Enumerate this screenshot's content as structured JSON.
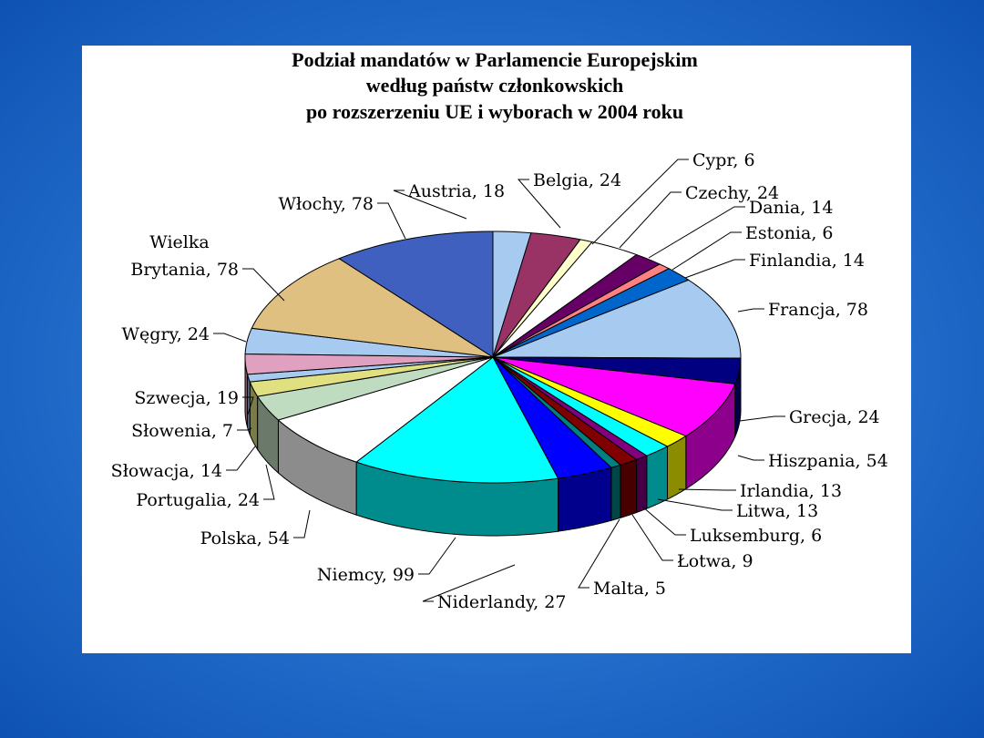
{
  "chart_data": {
    "type": "pie",
    "style": "3d-exploded-none",
    "title": [
      "Podział mandatów w Parlamencie Europejskim",
      "według państw członkowskich",
      "po rozszerzeniu UE i wyborach w 2004 roku"
    ],
    "label_format": "{category}, {value}",
    "start": "top, clockwise",
    "categories": [
      "Austria",
      "Belgia",
      "Cypr",
      "Czechy",
      "Dania",
      "Estonia",
      "Finlandia",
      "Francja",
      "Grecja",
      "Hiszpania",
      "Irlandia",
      "Litwa",
      "Luksemburg",
      "Łotwa",
      "Malta",
      "Niderlandy",
      "Niemcy",
      "Polska",
      "Portugalia",
      "Słowacja",
      "Słowenia",
      "Szwecja",
      "Węgry",
      "Wielka Brytania",
      "Włochy"
    ],
    "values": [
      18,
      24,
      6,
      24,
      14,
      6,
      14,
      78,
      24,
      54,
      13,
      13,
      6,
      9,
      5,
      27,
      99,
      54,
      24,
      14,
      7,
      19,
      24,
      78,
      78
    ],
    "colors": [
      "#a6caf0",
      "#993366",
      "#ffffcc",
      "#ffffff",
      "#660066",
      "#ff8080",
      "#0066cc",
      "#a6caf0",
      "#000080",
      "#ff00ff",
      "#ffff00",
      "#00ffff",
      "#800080",
      "#800000",
      "#008080",
      "#0000ff",
      "#00ffff",
      "#ffffff",
      "#c0dcc0",
      "#e0e080",
      "#a6caf0",
      "#e0a0c0",
      "#a6caf0",
      "#e0c080",
      "#4060c0"
    ]
  },
  "colors": {
    "background": "#1a6fd0",
    "panel": "#ffffff"
  }
}
